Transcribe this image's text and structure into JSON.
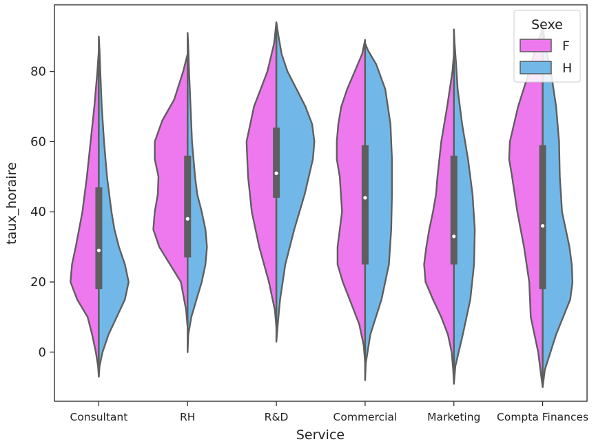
{
  "chart_data": {
    "type": "violin",
    "split": true,
    "title": "",
    "xlabel": "Service",
    "ylabel": "taux_horaire",
    "ylim": [
      -14,
      99
    ],
    "yticks": [
      0,
      20,
      40,
      60,
      80
    ],
    "grid": false,
    "legend": {
      "title": "Sexe",
      "position": "top-right"
    },
    "categories": [
      "Consultant",
      "RH",
      "R&D",
      "Commercial",
      "Marketing",
      "Compta Finances"
    ],
    "series": [
      {
        "name": "F",
        "color": "#ee78ee",
        "violins": [
          {
            "profile": [
              [
                -7,
                0.0
              ],
              [
                -4,
                0.01
              ],
              [
                0,
                0.04
              ],
              [
                5,
                0.09
              ],
              [
                10,
                0.15
              ],
              [
                15,
                0.29
              ],
              [
                20,
                0.38
              ],
              [
                25,
                0.36
              ],
              [
                30,
                0.31
              ],
              [
                40,
                0.22
              ],
              [
                50,
                0.16
              ],
              [
                60,
                0.11
              ],
              [
                70,
                0.06
              ],
              [
                80,
                0.02
              ],
              [
                86,
                0.0
              ]
            ]
          },
          {
            "profile": [
              [
                7,
                0.0
              ],
              [
                12,
                0.02
              ],
              [
                20,
                0.09
              ],
              [
                30,
                0.38
              ],
              [
                35,
                0.46
              ],
              [
                40,
                0.44
              ],
              [
                45,
                0.4
              ],
              [
                50,
                0.39
              ],
              [
                55,
                0.44
              ],
              [
                60,
                0.44
              ],
              [
                66,
                0.34
              ],
              [
                72,
                0.18
              ],
              [
                80,
                0.06
              ],
              [
                85,
                0.0
              ]
            ]
          },
          {
            "profile": [
              [
                7,
                0.0
              ],
              [
                12,
                0.02
              ],
              [
                20,
                0.1
              ],
              [
                30,
                0.23
              ],
              [
                40,
                0.33
              ],
              [
                50,
                0.38
              ],
              [
                60,
                0.4
              ],
              [
                70,
                0.3
              ],
              [
                80,
                0.12
              ],
              [
                88,
                0.03
              ],
              [
                94,
                0.0
              ]
            ]
          },
          {
            "profile": [
              [
                -3,
                0.0
              ],
              [
                2,
                0.02
              ],
              [
                8,
                0.08
              ],
              [
                14,
                0.19
              ],
              [
                20,
                0.3
              ],
              [
                25,
                0.37
              ],
              [
                30,
                0.37
              ],
              [
                40,
                0.31
              ],
              [
                50,
                0.34
              ],
              [
                55,
                0.38
              ],
              [
                60,
                0.38
              ],
              [
                65,
                0.36
              ],
              [
                70,
                0.32
              ],
              [
                75,
                0.24
              ],
              [
                80,
                0.14
              ],
              [
                85,
                0.04
              ],
              [
                89,
                0.0
              ]
            ]
          },
          {
            "profile": [
              [
                -9,
                0.0
              ],
              [
                -5,
                0.01
              ],
              [
                0,
                0.03
              ],
              [
                5,
                0.08
              ],
              [
                10,
                0.17
              ],
              [
                15,
                0.28
              ],
              [
                20,
                0.38
              ],
              [
                25,
                0.4
              ],
              [
                30,
                0.37
              ],
              [
                35,
                0.33
              ],
              [
                40,
                0.28
              ],
              [
                45,
                0.24
              ],
              [
                50,
                0.22
              ],
              [
                60,
                0.17
              ],
              [
                70,
                0.09
              ],
              [
                80,
                0.02
              ],
              [
                85,
                0.0
              ]
            ]
          },
          {
            "profile": [
              [
                -10,
                0.0
              ],
              [
                -5,
                0.03
              ],
              [
                0,
                0.06
              ],
              [
                10,
                0.16
              ],
              [
                20,
                0.18
              ],
              [
                30,
                0.25
              ],
              [
                40,
                0.34
              ],
              [
                50,
                0.41
              ],
              [
                55,
                0.45
              ],
              [
                60,
                0.44
              ],
              [
                70,
                0.33
              ],
              [
                80,
                0.18
              ],
              [
                87,
                0.09
              ],
              [
                91,
                0.02
              ],
              [
                93,
                0.0
              ]
            ]
          }
        ]
      },
      {
        "name": "H",
        "color": "#71b8e8",
        "violins": [
          {
            "profile": [
              [
                -7,
                0.0
              ],
              [
                -4,
                0.01
              ],
              [
                0,
                0.05
              ],
              [
                5,
                0.13
              ],
              [
                10,
                0.24
              ],
              [
                15,
                0.35
              ],
              [
                20,
                0.4
              ],
              [
                25,
                0.35
              ],
              [
                30,
                0.27
              ],
              [
                35,
                0.21
              ],
              [
                40,
                0.17
              ],
              [
                50,
                0.11
              ],
              [
                60,
                0.07
              ],
              [
                70,
                0.04
              ],
              [
                80,
                0.02
              ],
              [
                86,
                0.01
              ],
              [
                90,
                0.0
              ]
            ]
          },
          {
            "profile": [
              [
                0,
                0.0
              ],
              [
                5,
                0.01
              ],
              [
                10,
                0.05
              ],
              [
                15,
                0.12
              ],
              [
                20,
                0.19
              ],
              [
                25,
                0.24
              ],
              [
                30,
                0.26
              ],
              [
                35,
                0.24
              ],
              [
                40,
                0.19
              ],
              [
                45,
                0.13
              ],
              [
                50,
                0.1
              ],
              [
                60,
                0.06
              ],
              [
                70,
                0.04
              ],
              [
                80,
                0.02
              ],
              [
                87,
                0.01
              ],
              [
                91,
                0.0
              ]
            ]
          },
          {
            "profile": [
              [
                3,
                0.0
              ],
              [
                8,
                0.02
              ],
              [
                15,
                0.05
              ],
              [
                25,
                0.12
              ],
              [
                35,
                0.24
              ],
              [
                45,
                0.38
              ],
              [
                55,
                0.49
              ],
              [
                60,
                0.51
              ],
              [
                65,
                0.48
              ],
              [
                70,
                0.39
              ],
              [
                75,
                0.27
              ],
              [
                80,
                0.15
              ],
              [
                85,
                0.07
              ],
              [
                90,
                0.03
              ],
              [
                94,
                0.0
              ]
            ]
          },
          {
            "profile": [
              [
                -8,
                0.0
              ],
              [
                -3,
                0.01
              ],
              [
                5,
                0.07
              ],
              [
                15,
                0.22
              ],
              [
                25,
                0.32
              ],
              [
                35,
                0.35
              ],
              [
                45,
                0.36
              ],
              [
                55,
                0.36
              ],
              [
                65,
                0.34
              ],
              [
                75,
                0.27
              ],
              [
                82,
                0.15
              ],
              [
                86,
                0.04
              ],
              [
                88,
                0.0
              ]
            ]
          },
          {
            "profile": [
              [
                -9,
                0.0
              ],
              [
                -4,
                0.02
              ],
              [
                5,
                0.12
              ],
              [
                15,
                0.22
              ],
              [
                25,
                0.27
              ],
              [
                35,
                0.28
              ],
              [
                45,
                0.25
              ],
              [
                55,
                0.19
              ],
              [
                65,
                0.11
              ],
              [
                75,
                0.05
              ],
              [
                82,
                0.03
              ],
              [
                88,
                0.01
              ],
              [
                92,
                0.0
              ]
            ]
          },
          {
            "profile": [
              [
                -10,
                0.0
              ],
              [
                -5,
                0.03
              ],
              [
                5,
                0.18
              ],
              [
                15,
                0.37
              ],
              [
                20,
                0.4
              ],
              [
                25,
                0.39
              ],
              [
                30,
                0.36
              ],
              [
                40,
                0.26
              ],
              [
                50,
                0.23
              ],
              [
                60,
                0.22
              ],
              [
                70,
                0.18
              ],
              [
                80,
                0.11
              ],
              [
                88,
                0.03
              ],
              [
                93,
                0.0
              ]
            ]
          }
        ]
      }
    ],
    "boxplot": [
      {
        "q1": 18,
        "median": 29,
        "q3": 47,
        "whisker_low": -7,
        "whisker_high": 90
      },
      {
        "q1": 27,
        "median": 38,
        "q3": 56,
        "whisker_low": 0,
        "whisker_high": 91
      },
      {
        "q1": 44,
        "median": 51,
        "q3": 64,
        "whisker_low": 3,
        "whisker_high": 94
      },
      {
        "q1": 25,
        "median": 44,
        "q3": 59,
        "whisker_low": -8,
        "whisker_high": 89
      },
      {
        "q1": 25,
        "median": 33,
        "q3": 56,
        "whisker_low": -9,
        "whisker_high": 92
      },
      {
        "q1": 18,
        "median": 36,
        "q3": 59,
        "whisker_low": -10,
        "whisker_high": 93
      }
    ]
  }
}
